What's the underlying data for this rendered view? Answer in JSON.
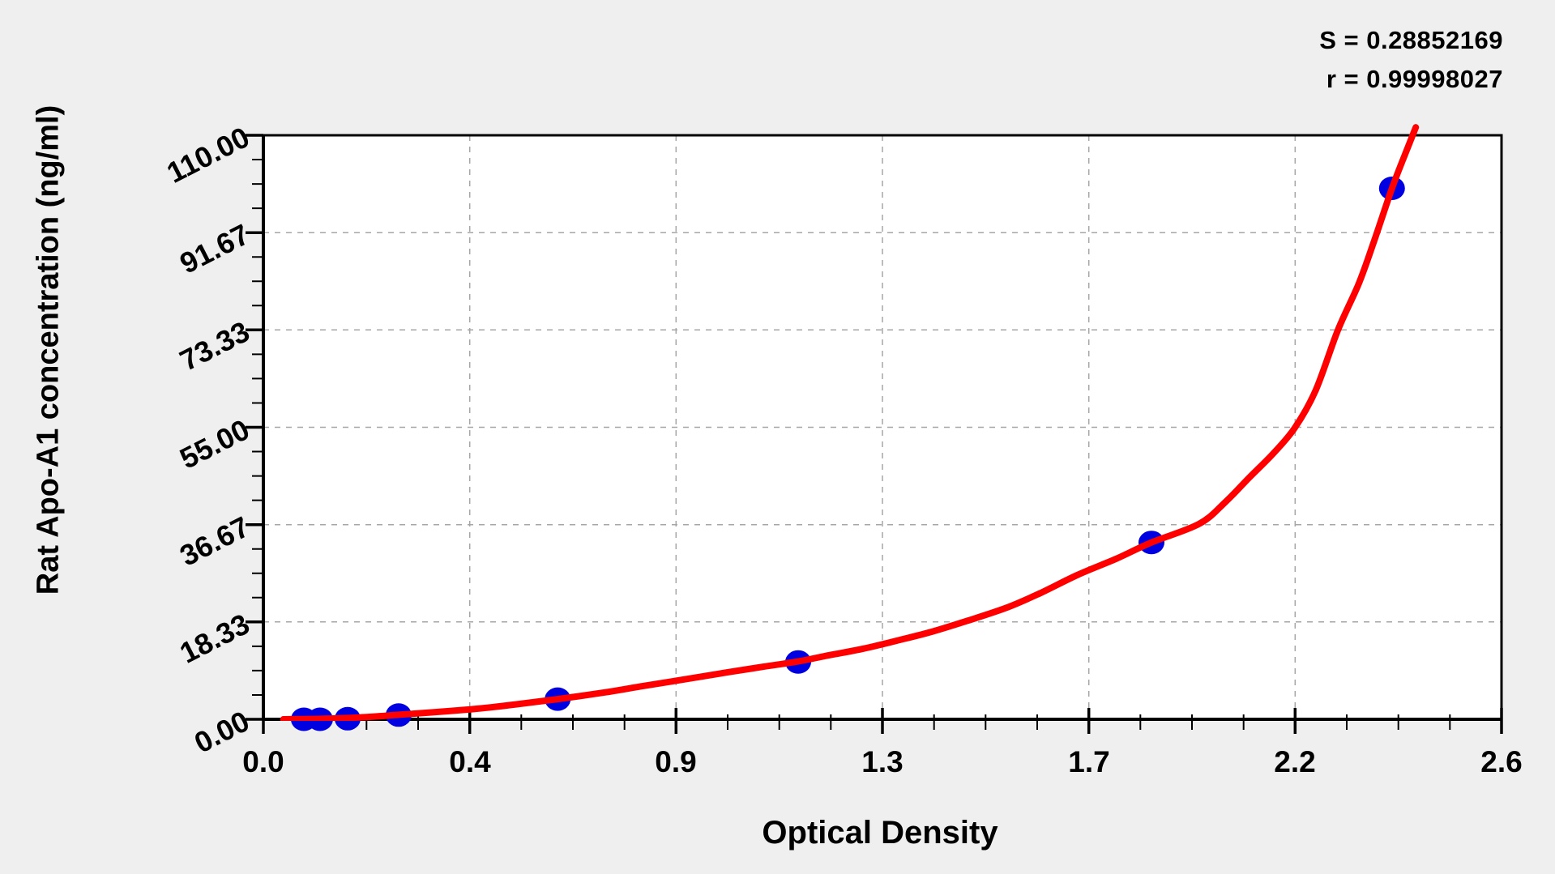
{
  "page": {
    "background_color": "#efefef",
    "stats": {
      "line1": "S = 0.28852169",
      "line2": "r = 0.99998027"
    }
  },
  "chart_data": {
    "type": "scatter",
    "title": "",
    "xlabel": "Optical Density",
    "ylabel": "Rat Apo-A1 concentration (ng/ml)",
    "legend": "none",
    "grid": "dashed major gridlines",
    "x_axis": {
      "min": 0.0,
      "max": 2.6,
      "major_ticks": [
        0,
        0.43333,
        0.86667,
        1.3,
        1.73333,
        2.16667,
        2.6
      ],
      "tick_labels": [
        "0.0",
        "0.4",
        "0.9",
        "1.3",
        "1.7",
        "2.2",
        "2.6"
      ],
      "minor_divisions": 4
    },
    "y_axis": {
      "min": 0.0,
      "max": 110.0,
      "major_ticks": [
        0,
        18.333,
        36.667,
        55.0,
        73.333,
        91.667,
        110.0
      ],
      "tick_labels": [
        "0.00",
        "18.33",
        "36.67",
        "55.00",
        "73.33",
        "91.67",
        "110.00"
      ],
      "minor_divisions": 4
    },
    "points": [
      {
        "od": 0.085,
        "conc": 0.0
      },
      {
        "od": 0.119,
        "conc": 0.0
      },
      {
        "od": 0.177,
        "conc": 0.1
      },
      {
        "od": 0.284,
        "conc": 0.8
      },
      {
        "od": 0.618,
        "conc": 3.8
      },
      {
        "od": 1.123,
        "conc": 10.8
      },
      {
        "od": 1.865,
        "conc": 33.3
      },
      {
        "od": 2.37,
        "conc": 100.0
      }
    ],
    "fit_curve_samples": [
      [
        0.042,
        0.0
      ],
      [
        0.085,
        0.05
      ],
      [
        0.13,
        0.1
      ],
      [
        0.177,
        0.25
      ],
      [
        0.23,
        0.5
      ],
      [
        0.284,
        0.85
      ],
      [
        0.37,
        1.4
      ],
      [
        0.45,
        2.0
      ],
      [
        0.53,
        2.8
      ],
      [
        0.618,
        3.8
      ],
      [
        0.72,
        5.1
      ],
      [
        0.8,
        6.3
      ],
      [
        0.89,
        7.6
      ],
      [
        0.978,
        8.9
      ],
      [
        1.05,
        9.9
      ],
      [
        1.123,
        10.9
      ],
      [
        1.19,
        12.1
      ],
      [
        1.26,
        13.3
      ],
      [
        1.33,
        14.8
      ],
      [
        1.404,
        16.5
      ],
      [
        1.48,
        18.6
      ],
      [
        1.56,
        21.0
      ],
      [
        1.63,
        23.7
      ],
      [
        1.71,
        27.2
      ],
      [
        1.79,
        30.2
      ],
      [
        1.865,
        33.3
      ],
      [
        1.965,
        36.8
      ],
      [
        2.02,
        40.9
      ],
      [
        2.07,
        45.5
      ],
      [
        2.12,
        50.0
      ],
      [
        2.166,
        54.9
      ],
      [
        2.21,
        62.0
      ],
      [
        2.256,
        73.2
      ],
      [
        2.3,
        82.0
      ],
      [
        2.331,
        89.7
      ],
      [
        2.37,
        100.0
      ],
      [
        2.4,
        107.0
      ],
      [
        2.42,
        111.5
      ]
    ],
    "colors": {
      "curve": "#ff0000",
      "points": "#0000e0",
      "grid": "#a6a6a6",
      "axis": "#000000",
      "plot_bg": "#ffffff",
      "text": "#000000"
    }
  }
}
